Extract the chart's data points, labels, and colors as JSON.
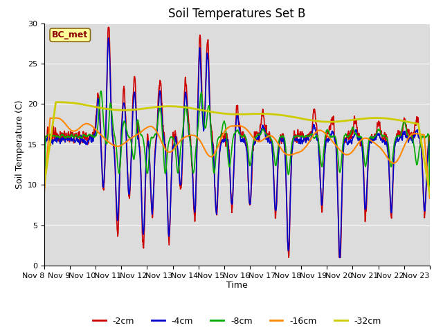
{
  "title": "Soil Temperatures Set B",
  "xlabel": "Time",
  "ylabel": "Soil Temperature (C)",
  "ylim": [
    0,
    30
  ],
  "annotation": "BC_met",
  "annotation_color": "#8B0000",
  "annotation_bg": "#FFFF99",
  "annotation_edge": "#8B6914",
  "bg_color": "#DCDCDC",
  "series": {
    "-2cm": {
      "color": "#CC0000",
      "lw": 1.2
    },
    "-4cm": {
      "color": "#0000CC",
      "lw": 1.2
    },
    "-8cm": {
      "color": "#00AA00",
      "lw": 1.2
    },
    "-16cm": {
      "color": "#FF8800",
      "lw": 1.5
    },
    "-32cm": {
      "color": "#CCCC00",
      "lw": 2.0
    }
  },
  "xtick_labels": [
    "Nov 8",
    "Nov 9",
    "Nov 10",
    "Nov 11",
    "Nov 12",
    "Nov 13",
    "Nov 14",
    "Nov 15",
    "Nov 16",
    "Nov 17",
    "Nov 18",
    "Nov 19",
    "Nov 20",
    "Nov 21",
    "Nov 22",
    "Nov 23"
  ],
  "ytick_labels": [
    "0",
    "5",
    "10",
    "15",
    "20",
    "25",
    "30"
  ],
  "legend_fontsize": 9,
  "title_fontsize": 12,
  "tick_fontsize": 8
}
